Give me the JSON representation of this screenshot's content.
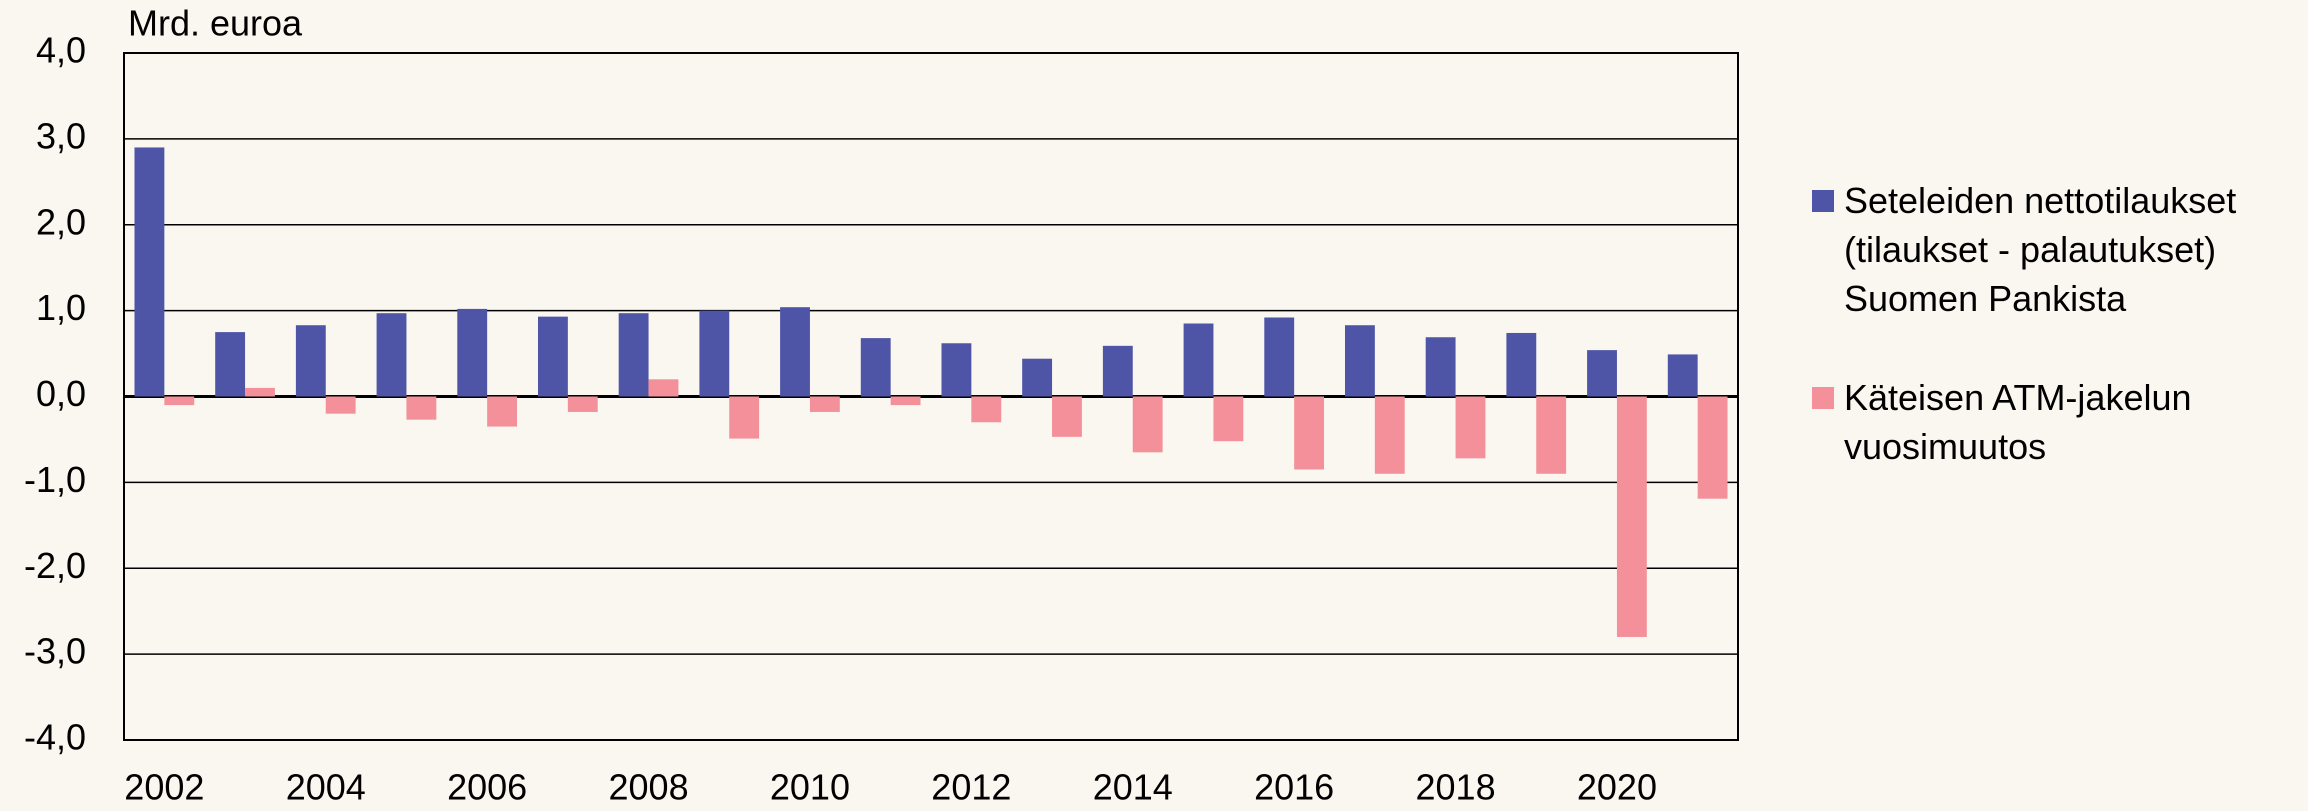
{
  "chart_data": {
    "type": "bar",
    "y_label": "Mrd. euroa",
    "categories": [
      "2002",
      null,
      "2004",
      null,
      "2006",
      null,
      "2008",
      null,
      "2010",
      null,
      "2012",
      null,
      "2014",
      null,
      "2016",
      null,
      "2018",
      null,
      "2020",
      null
    ],
    "series": [
      {
        "name": "Seteleiden nettotilaukset (tilaukset - palautukset) Suomen Pankista",
        "color": "#4f55a6",
        "values": [
          2.9,
          0.75,
          0.83,
          0.97,
          1.02,
          0.93,
          0.97,
          1.0,
          1.04,
          0.68,
          0.62,
          0.44,
          0.59,
          0.85,
          0.92,
          0.83,
          0.69,
          0.74,
          0.54,
          0.49
        ]
      },
      {
        "name": "Käteisen ATM-jakelun vuosimuutos",
        "color": "#f4909a",
        "values": [
          -0.1,
          0.1,
          -0.2,
          -0.27,
          -0.35,
          -0.18,
          0.2,
          -0.49,
          -0.18,
          -0.1,
          -0.3,
          -0.47,
          -0.65,
          -0.52,
          -0.85,
          -0.9,
          -0.72,
          -0.9,
          -2.8,
          -1.19
        ]
      }
    ],
    "ylim": [
      -4,
      4
    ],
    "yticks": [
      {
        "value": -4,
        "label": "-4,0"
      },
      {
        "value": -3,
        "label": "-3,0"
      },
      {
        "value": -2,
        "label": "-2,0"
      },
      {
        "value": -1,
        "label": "-1,0"
      },
      {
        "value": 0,
        "label": "0,0"
      },
      {
        "value": 1,
        "label": "1,0"
      },
      {
        "value": 2,
        "label": "2,0"
      },
      {
        "value": 3,
        "label": "3,0"
      },
      {
        "value": 4,
        "label": "4,0"
      }
    ],
    "grid": true,
    "legend": "right"
  }
}
